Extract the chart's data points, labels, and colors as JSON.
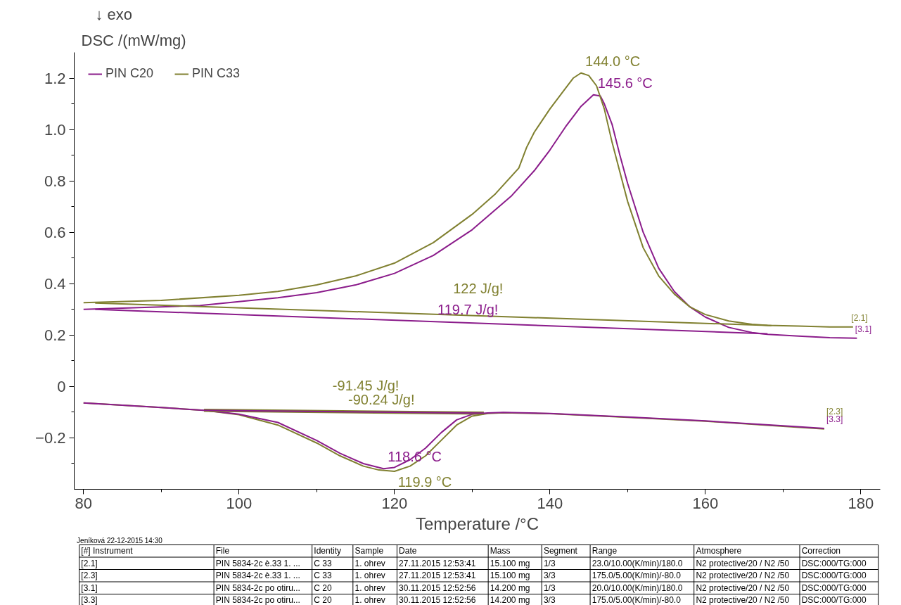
{
  "chart_data": {
    "type": "line",
    "xlabel": "Temperature /°C",
    "ylabel": "DSC /(mW/mg)",
    "xlim": [
      78.8,
      182.5
    ],
    "ylim": [
      -0.4,
      1.3
    ],
    "xticks": [
      80,
      {
        "value": 90,
        "label": null
      },
      100,
      {
        "value": 110,
        "label": null
      },
      120,
      {
        "value": 130,
        "label": null
      },
      140,
      {
        "value": 150,
        "label": null
      },
      160,
      {
        "value": 170,
        "label": null
      },
      180
    ],
    "yticks": [
      {
        "value": -0.3,
        "label": null
      },
      -0.2,
      {
        "value": -0.1,
        "label": null
      },
      0,
      {
        "value": 0.1,
        "label": null
      },
      0.2,
      {
        "value": 0.3,
        "label": null
      },
      0.4,
      {
        "value": 0.5,
        "label": null
      },
      0.6,
      {
        "value": 0.7,
        "label": null
      },
      0.8,
      {
        "value": 0.9,
        "label": null
      },
      {
        "value": 1.0,
        "label": "1.0"
      },
      {
        "value": 1.1,
        "label": null
      },
      1.2
    ],
    "legend": "top left",
    "marker": "none",
    "line_style": "solid",
    "series": [
      {
        "name": "PIN C20",
        "color": "#8b1c8b",
        "x": [
          80,
          85,
          90,
          95,
          100,
          105,
          110,
          115,
          120,
          125,
          130,
          135,
          138,
          140,
          142,
          144,
          145.6,
          146.5,
          147,
          148,
          149,
          150,
          152,
          154,
          156,
          158,
          160,
          163,
          166,
          168,
          172,
          176,
          179.5
        ],
        "values": [
          0.3,
          0.305,
          0.31,
          0.315,
          0.33,
          0.345,
          0.365,
          0.395,
          0.44,
          0.51,
          0.61,
          0.74,
          0.84,
          0.92,
          1.01,
          1.09,
          1.135,
          1.13,
          1.1,
          1.02,
          0.9,
          0.79,
          0.6,
          0.46,
          0.37,
          0.31,
          0.27,
          0.23,
          0.21,
          0.203,
          0.196,
          0.19,
          0.188
        ]
      },
      {
        "name": "PIN C33",
        "color": "#808030",
        "x": [
          80,
          90,
          100,
          105,
          110,
          115,
          120,
          125,
          130,
          133,
          136,
          137,
          138,
          140,
          142,
          143,
          144,
          145,
          146,
          147,
          148,
          150,
          152,
          154,
          156,
          158,
          160,
          163,
          166,
          168,
          172,
          176,
          179
        ],
        "values": [
          0.326,
          0.335,
          0.355,
          0.37,
          0.395,
          0.43,
          0.48,
          0.56,
          0.67,
          0.75,
          0.85,
          0.93,
          0.99,
          1.08,
          1.16,
          1.2,
          1.22,
          1.21,
          1.17,
          1.08,
          0.95,
          0.72,
          0.54,
          0.43,
          0.36,
          0.31,
          0.28,
          0.255,
          0.242,
          0.238,
          0.235,
          0.232,
          0.232
        ]
      },
      {
        "color": "#808030",
        "x": [
          81.5,
          168.5
        ],
        "values": [
          0.325,
          0.237
        ]
      },
      {
        "color": "#8b1c8b",
        "x": [
          81.5,
          168
        ],
        "values": [
          0.3,
          0.205
        ]
      },
      {
        "color": "#808030",
        "x": [
          80,
          90,
          95.5,
          100,
          105,
          110,
          113,
          116,
          118,
          120,
          122,
          124,
          126,
          128,
          130,
          132,
          134,
          140,
          150,
          160,
          170,
          175.3
        ],
        "values": [
          -0.064,
          -0.082,
          -0.093,
          -0.11,
          -0.15,
          -0.22,
          -0.27,
          -0.31,
          -0.325,
          -0.33,
          -0.31,
          -0.27,
          -0.21,
          -0.15,
          -0.115,
          -0.105,
          -0.102,
          -0.106,
          -0.12,
          -0.135,
          -0.155,
          -0.165
        ]
      },
      {
        "color": "#8b1c8b",
        "x": [
          80,
          90,
          95.5,
          100,
          105,
          110,
          113,
          116,
          118.6,
          120,
          122,
          124,
          126,
          128,
          130,
          132,
          134,
          140,
          150,
          160,
          170,
          175.3
        ],
        "values": [
          -0.064,
          -0.082,
          -0.093,
          -0.108,
          -0.14,
          -0.21,
          -0.26,
          -0.3,
          -0.32,
          -0.315,
          -0.285,
          -0.24,
          -0.18,
          -0.13,
          -0.108,
          -0.103,
          -0.101,
          -0.105,
          -0.119,
          -0.134,
          -0.153,
          -0.163
        ]
      },
      {
        "color": "#808030",
        "x": [
          95.5,
          131.5
        ],
        "values": [
          -0.093,
          -0.104
        ]
      },
      {
        "color": "#8b1c8b",
        "x": [
          95.5,
          131.5
        ],
        "values": [
          -0.093,
          -0.104
        ]
      }
    ],
    "annotations": [
      "↓ exo",
      "Jeníková  22-12-2015 14:30",
      "[#] Instrument",
      "File",
      "Identity",
      "Sample",
      "Date",
      "Mass",
      "Segment",
      "Range",
      "Atmosphere",
      "Correction",
      "[2.1]",
      "PIN 5834-2c è.33 1. ...",
      "C 33",
      "1. ohrev",
      "27.11.2015 12:53:41",
      "15.100 mg",
      "1/3",
      "23.0/10.00(K/min)/180.0",
      "N2 protective/20 / N2 /50",
      "DSC:000/TG:000",
      "[2.3]",
      "PIN 5834-2c è.33 1. ...",
      "C 33",
      "1. ohrev",
      "27.11.2015 12:53:41",
      "15.100 mg",
      "3/3",
      "175.0/5.00(K/min)/-80.0",
      "N2 protective/20 / N2 /50",
      "DSC:000/TG:000",
      "[3.1]",
      "PIN 5834-2c po otiru...",
      "C 20",
      "1. ohrev",
      "30.11.2015 12:52:56",
      "14.200 mg",
      "1/3",
      "20.0/10.00(K/min)/180.0",
      "N2 protective/20 / N2 /50",
      "DSC:000/TG:000",
      "[3.3]",
      "PIN 5834-2c po otiru...",
      "C 20",
      "1. ohrev",
      "30.11.2015 12:52:56",
      "14.200 mg",
      "3/3",
      "175.0/5.00(K/min)/-80.0",
      "N2 protective/20 / N2 /50",
      "DSC:000/TG:000",
      {
        "text": "145.6 °C",
        "x": 145.6,
        "y": 1.135
      },
      {
        "text": "144.0 °C",
        "x": 144.0,
        "y": 1.22
      },
      {
        "text": "119.7 J/g!",
        "x": 125,
        "y": 0.252
      },
      {
        "text": "122 J/g!",
        "x": 127,
        "y": 0.279
      },
      {
        "text": "-90.24 J/g!",
        "x": 113.5,
        "y": -0.098
      },
      {
        "text": "-91.45 J/g!",
        "x": 111.5,
        "y": -0.097
      },
      {
        "text": "118.6 °C",
        "x": 118.6,
        "y": -0.32
      },
      {
        "text": "119.9 °C",
        "x": 119.9,
        "y": -0.33
      },
      {
        "text": "[2.1]",
        "x": 178.5,
        "y": 0.232
      },
      {
        "text": "[3.1]",
        "x": 179.0,
        "y": 0.188
      },
      {
        "text": "[3.3]",
        "x": 175.3,
        "y": -0.163
      },
      {
        "text": "[2.3]",
        "x": 175.3,
        "y": -0.165
      }
    ]
  }
}
